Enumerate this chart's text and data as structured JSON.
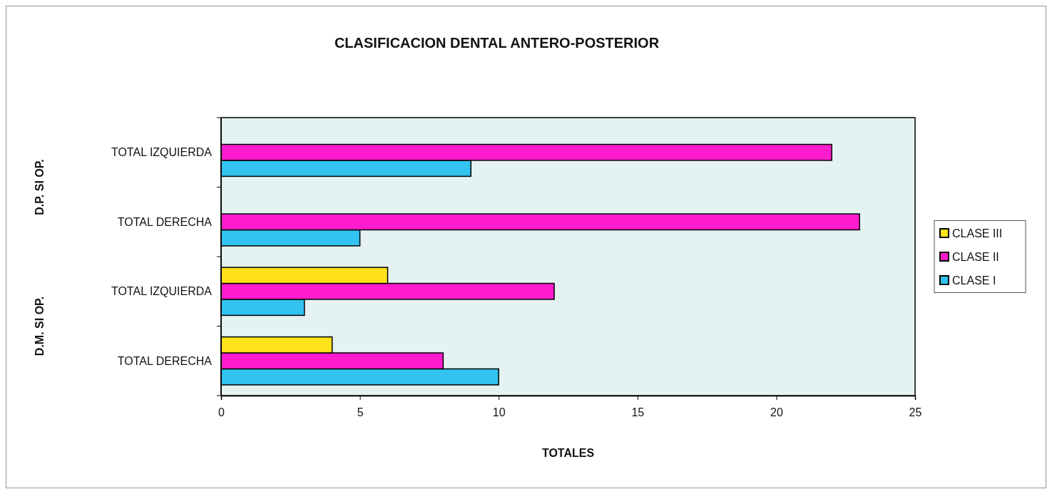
{
  "chart_data": {
    "type": "bar",
    "orientation": "horizontal",
    "title": "CLASIFICACION DENTAL ANTERO-POSTERIOR",
    "xlabel": "TOTALES",
    "categories": [
      "TOTAL IZQUIERDA",
      "TOTAL DERECHA",
      "TOTAL IZQUIERDA",
      "TOTAL DERECHA"
    ],
    "series": [
      {
        "name": "CLASE I",
        "color": "#33c3f0",
        "values": [
          9,
          5,
          3,
          10
        ]
      },
      {
        "name": "CLASE II",
        "color": "#ff1ccc",
        "values": [
          22,
          23,
          12,
          8
        ]
      },
      {
        "name": "CLASE III",
        "color": "#ffe21a",
        "values": [
          0,
          0,
          6,
          4
        ]
      }
    ],
    "xlim": [
      0,
      25
    ],
    "xticks": [
      0,
      5,
      10,
      15,
      20,
      25
    ],
    "legend": "right",
    "annotations": [
      "D.P. SI OP.",
      "D.M. SI OP."
    ]
  }
}
